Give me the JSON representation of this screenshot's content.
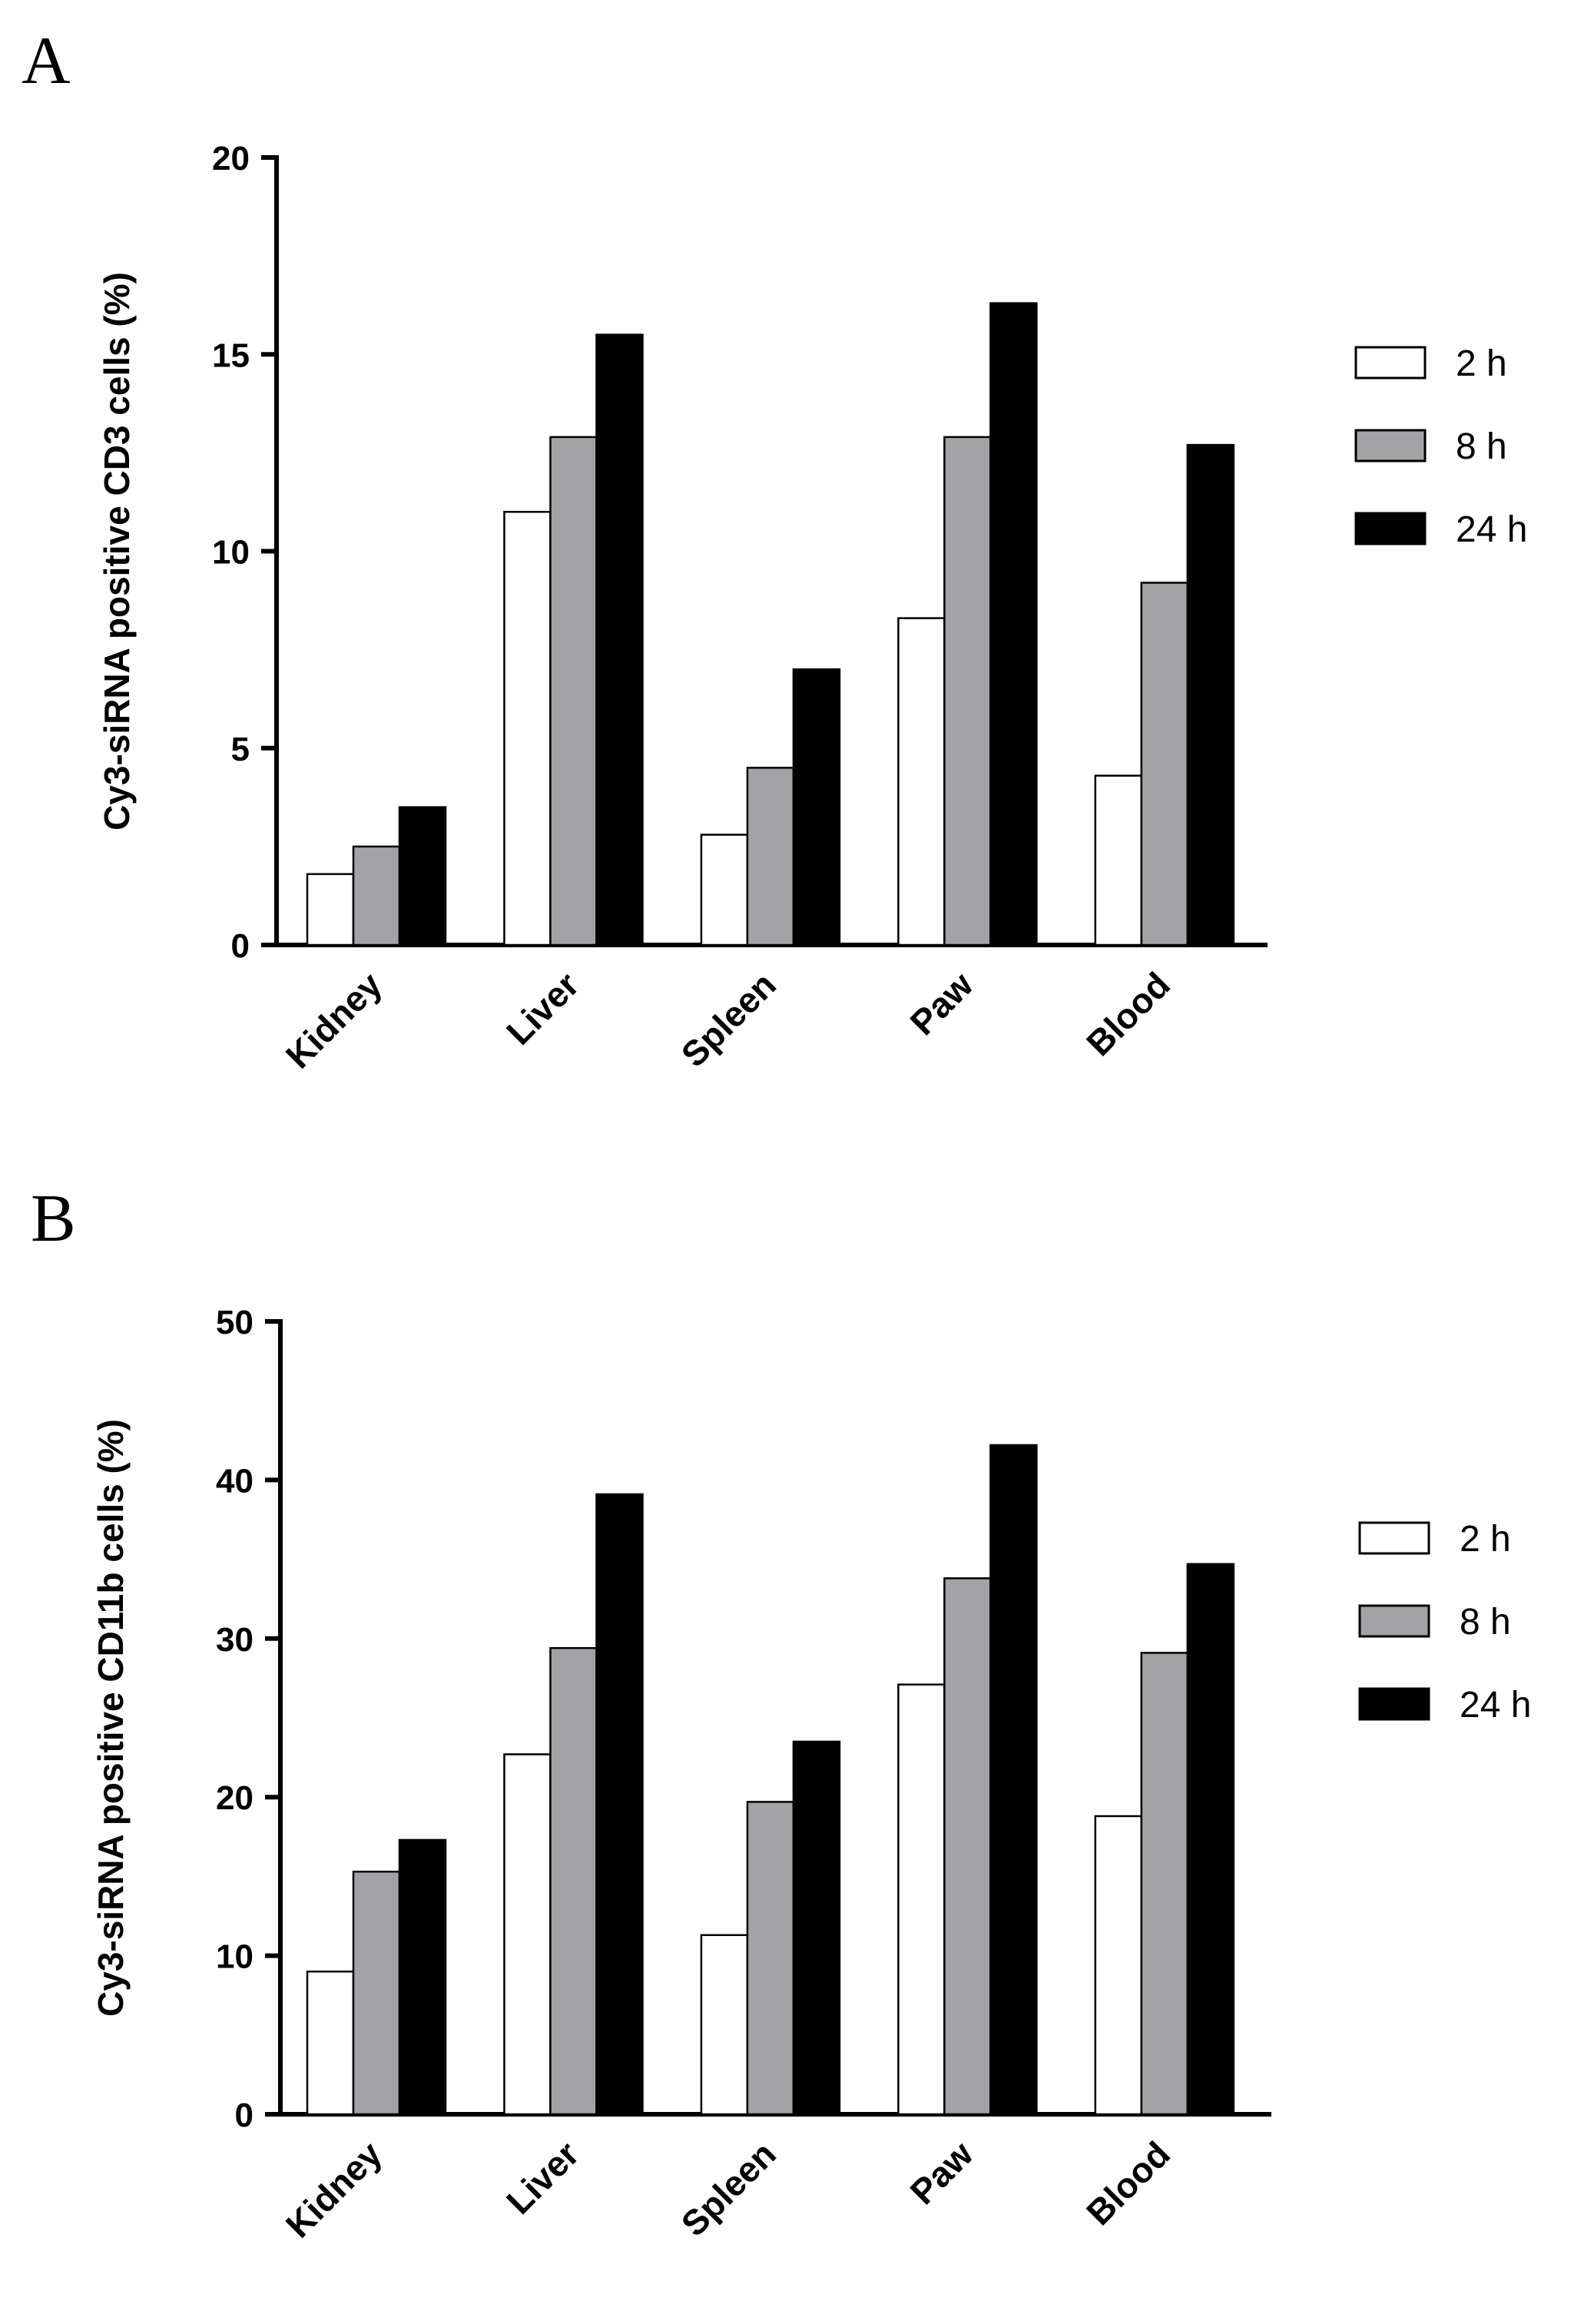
{
  "chart_data": [
    {
      "panel_letter": "A",
      "type": "bar",
      "ylabel": "Cy3-siRNA positive CD3  cells (%)",
      "ylim": [
        0,
        20
      ],
      "yticks": [
        0,
        5,
        10,
        15,
        20
      ],
      "categories": [
        "Kidney",
        "Liver",
        "Spleen",
        "Paw",
        "Blood"
      ],
      "series": [
        {
          "name": "2 h",
          "color": "#ffffff",
          "values": [
            1.8,
            11.0,
            2.8,
            8.3,
            4.3
          ]
        },
        {
          "name": "8 h",
          "color": "#a3a3a6",
          "values": [
            2.5,
            12.9,
            4.5,
            12.9,
            9.2
          ]
        },
        {
          "name": "24 h",
          "color": "#000000",
          "values": [
            3.5,
            15.5,
            7.0,
            16.3,
            12.7
          ]
        }
      ],
      "legend_position": "right",
      "grid": false
    },
    {
      "panel_letter": "B",
      "type": "bar",
      "ylabel": "Cy3-siRNA positive CD11b cells (%)",
      "ylim": [
        0,
        50
      ],
      "yticks": [
        0,
        10,
        20,
        30,
        40,
        50
      ],
      "categories": [
        "Kidney",
        "Liver",
        "Spleen",
        "Paw",
        "Blood"
      ],
      "series": [
        {
          "name": "2 h",
          "color": "#ffffff",
          "values": [
            9.0,
            22.7,
            11.3,
            27.1,
            18.8
          ]
        },
        {
          "name": "8 h",
          "color": "#a3a3a6",
          "values": [
            15.3,
            29.4,
            19.7,
            33.8,
            29.1
          ]
        },
        {
          "name": "24 h",
          "color": "#000000",
          "values": [
            17.3,
            39.1,
            23.5,
            42.2,
            34.7
          ]
        }
      ],
      "legend_position": "right",
      "grid": false
    }
  ]
}
